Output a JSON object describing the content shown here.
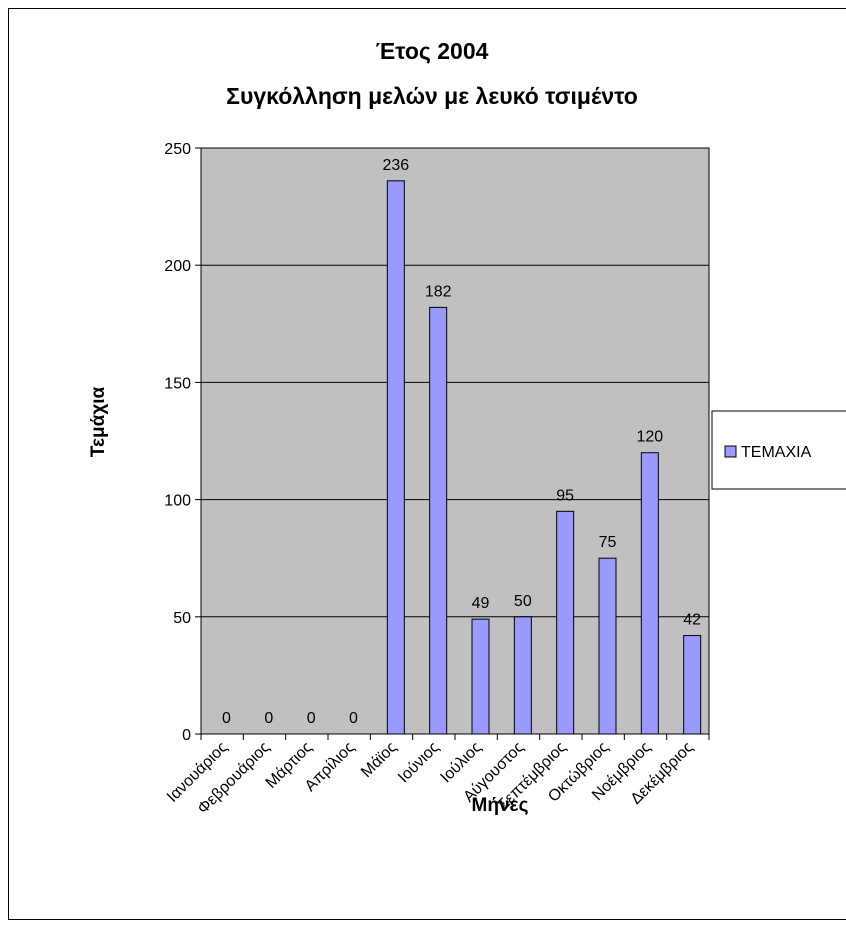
{
  "chart_data": {
    "type": "bar",
    "title_line1": "Έτος 2004",
    "title_line2": "Συγκόλληση μελών με λευκό τσιμέντο",
    "xlabel": "Μήνες",
    "ylabel": "Τεμάχια",
    "categories": [
      "Ιανουάριος",
      "Φεβρουάριος",
      "Μάρτιος",
      "Απρίλιος",
      "Μάϊος",
      "Ιούνιος",
      "Ιούλιος",
      "Αύγουστος",
      "Σεπτέμβριος",
      "Οκτώβριος",
      "Νοέμβριος",
      "Δεκέμβριος"
    ],
    "series": [
      {
        "name": "ΤΕΜΑΧΙΑ",
        "values": [
          0,
          0,
          0,
          0,
          236,
          182,
          49,
          50,
          95,
          75,
          120,
          42
        ]
      }
    ],
    "ylim": [
      0,
      250
    ],
    "yticks": [
      "0",
      "50",
      "100",
      "150",
      "200",
      "250"
    ],
    "grid": true,
    "legend_position": "right",
    "colors": {
      "bar": "#9999ff",
      "plot_background": "#c0c0c0",
      "border": "#000000"
    }
  }
}
